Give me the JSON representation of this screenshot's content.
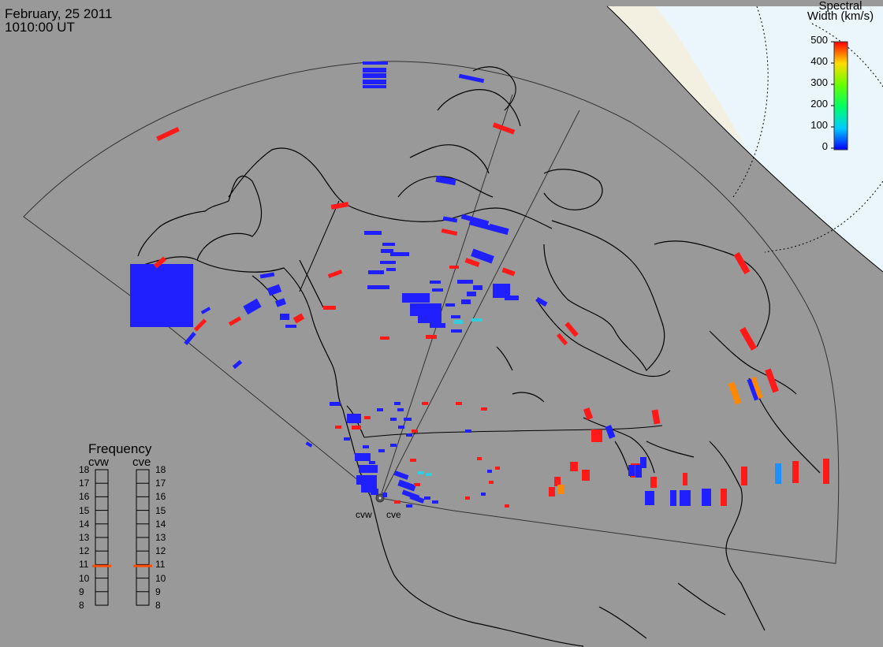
{
  "header": {
    "date": "February, 25 2011",
    "time": "1010:00 UT"
  },
  "colorbar": {
    "title_line1": "Spectral",
    "title_line2": "Width (km/s)",
    "ticks": [
      "500",
      "400",
      "300",
      "200",
      "100",
      "0"
    ],
    "range": [
      0,
      500
    ],
    "gradient": [
      "#0000ff",
      "#00ccff",
      "#00ff66",
      "#66ff00",
      "#ffdd00",
      "#ff0000"
    ]
  },
  "frequency_panel": {
    "title": "Frequency",
    "radars": [
      {
        "name": "cvw",
        "frequency_mhz": 10.9
      },
      {
        "name": "cve",
        "frequency_mhz": 10.9
      }
    ],
    "ticks": [
      "18",
      "17",
      "16",
      "15",
      "14",
      "13",
      "12",
      "11",
      "10",
      "9",
      "8"
    ]
  },
  "sites": [
    {
      "name": "cvw"
    },
    {
      "name": "cve"
    }
  ],
  "colors": {
    "background": "#999999",
    "sea_ice": "#e8f5fb",
    "land_beige": "#f5f0e0",
    "low_width": "#2020ff",
    "high_width": "#ff1a1a",
    "mid_width": "#1e90ff",
    "cyan": "#33ccdd",
    "orange": "#ff8800",
    "frequency_mark": "#ff4d00"
  },
  "icons": {
    "radar_site": "circle-dot-icon"
  }
}
